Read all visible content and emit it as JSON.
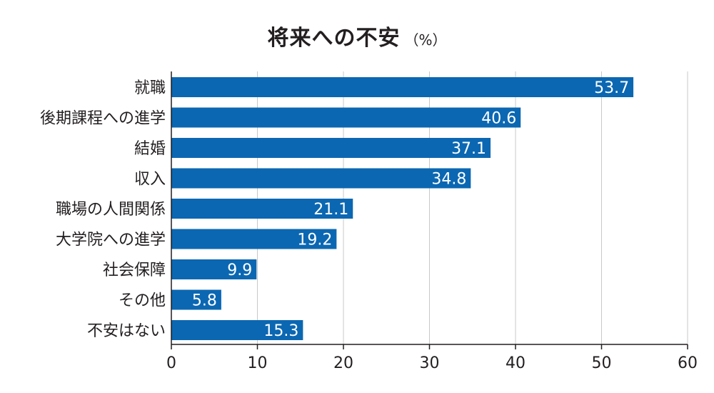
{
  "chart_data": {
    "type": "bar",
    "orientation": "horizontal",
    "title": "将来への不安",
    "unit": "（%）",
    "categories": [
      "就職",
      "後期課程への進学",
      "結婚",
      "収入",
      "職場の人間関係",
      "大学院への進学",
      "社会保障",
      "その他",
      "不安はない"
    ],
    "values": [
      53.7,
      40.6,
      37.1,
      34.8,
      21.1,
      19.2,
      9.9,
      5.8,
      15.3
    ],
    "value_labels": [
      "53.7",
      "40.6",
      "37.1",
      "34.8",
      "21.1",
      "19.2",
      "9.9",
      "5.8",
      "15.3"
    ],
    "xlim": [
      0,
      60
    ],
    "xticks": [
      0,
      10,
      20,
      30,
      40,
      50,
      60
    ],
    "xtick_labels": [
      "0",
      "10",
      "20",
      "30",
      "40",
      "50",
      "60"
    ],
    "grid": true,
    "bar_color": "#0b67b2",
    "grid_color": "#c8c8c8",
    "axis_color": "#231f20"
  }
}
